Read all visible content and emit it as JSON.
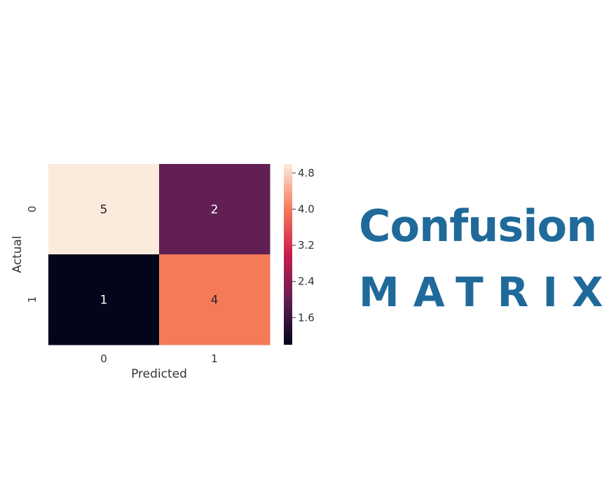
{
  "headline": {
    "line1": "Confusion",
    "line2": "MATRIX"
  },
  "chart_data": {
    "type": "heatmap",
    "title": "",
    "xlabel": "Predicted",
    "ylabel": "Actual",
    "x_categories": [
      "0",
      "1"
    ],
    "y_categories": [
      "0",
      "1"
    ],
    "values": [
      [
        5,
        2
      ],
      [
        1,
        4
      ]
    ],
    "annotations": true,
    "colormap": "rocket",
    "colorbar": {
      "range": [
        1,
        5
      ],
      "ticks": [
        "1.6",
        "2.4",
        "3.2",
        "4.0",
        "4.8"
      ]
    },
    "colors": [
      "#03051a",
      "#611f53",
      "#e13342",
      "#f6b48f",
      "#faebdd"
    ]
  }
}
